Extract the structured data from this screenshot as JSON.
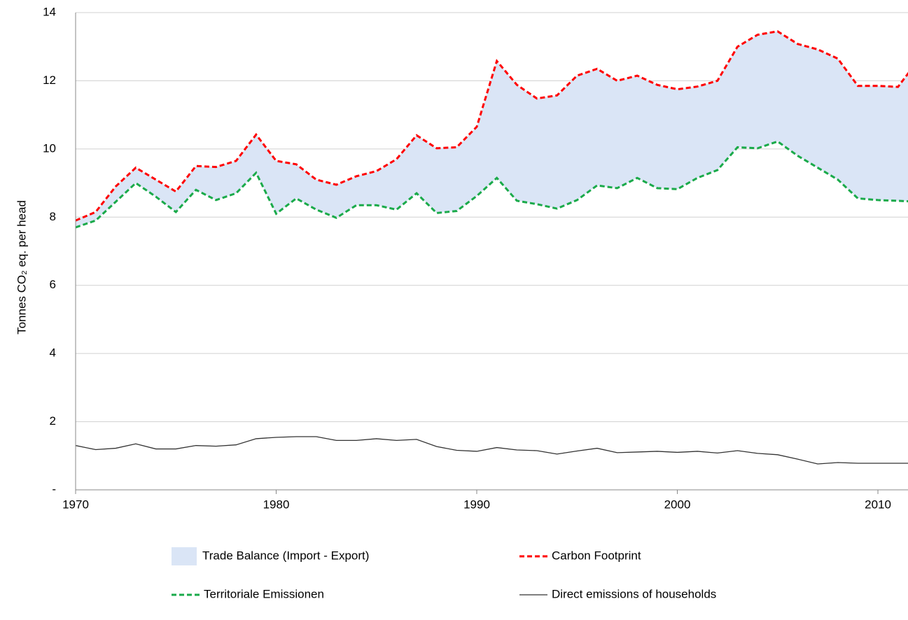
{
  "chart_data": {
    "type": "line",
    "y_label": "Tonnes CO₂ eq. per head",
    "x": [
      1970,
      1971,
      1972,
      1973,
      1974,
      1975,
      1976,
      1977,
      1978,
      1979,
      1980,
      1981,
      1982,
      1983,
      1984,
      1985,
      1986,
      1987,
      1988,
      1989,
      1990,
      1991,
      1992,
      1993,
      1994,
      1995,
      1996,
      1997,
      1998,
      1999,
      2000,
      2001,
      2002,
      2003,
      2004,
      2005,
      2006,
      2007,
      2008,
      2009,
      2010,
      2011,
      2012
    ],
    "xlim": [
      1970,
      2011.5
    ],
    "xticks": [
      1970,
      1980,
      1990,
      2000,
      2010
    ],
    "ylim": [
      0,
      14
    ],
    "yticks": [
      {
        "value": 0,
        "label": "-"
      },
      2,
      4,
      6,
      8,
      10,
      12,
      14
    ],
    "grid": true,
    "series": [
      {
        "name": "Trade Balance (Import - Export)",
        "type": "area",
        "color": "#dae5f6",
        "stacked_on": "Territoriale Emissionen",
        "values": [
          0.2,
          0.25,
          0.45,
          0.45,
          0.5,
          0.6,
          0.7,
          0.97,
          0.95,
          1.12,
          1.55,
          1.0,
          0.88,
          0.97,
          0.85,
          1.0,
          1.48,
          1.7,
          1.9,
          1.87,
          2.03,
          3.43,
          3.4,
          3.1,
          3.32,
          3.65,
          3.42,
          3.15,
          3.0,
          3.03,
          2.93,
          2.68,
          2.62,
          2.95,
          3.33,
          3.23,
          3.28,
          3.47,
          3.55,
          3.3,
          3.35,
          3.34,
          4.15
        ]
      },
      {
        "name": "Carbon Footprint",
        "type": "line",
        "color": "#ff0000",
        "dashed": true,
        "values": [
          7.9,
          8.15,
          8.9,
          9.45,
          9.1,
          8.75,
          9.5,
          9.47,
          9.65,
          10.42,
          9.65,
          9.55,
          9.1,
          8.95,
          9.2,
          9.35,
          9.7,
          10.4,
          10.02,
          10.05,
          10.65,
          12.58,
          11.88,
          11.48,
          11.57,
          12.15,
          12.35,
          12.0,
          12.15,
          11.88,
          11.75,
          11.83,
          12.0,
          13.0,
          13.35,
          13.45,
          13.08,
          12.92,
          12.65,
          11.85,
          11.85,
          11.82,
          12.6
        ]
      },
      {
        "name": "Territoriale Emissionen",
        "type": "line",
        "color": "#1aaa4a",
        "dashed": true,
        "values": [
          7.7,
          7.9,
          8.45,
          9.0,
          8.6,
          8.15,
          8.8,
          8.5,
          8.7,
          9.3,
          8.1,
          8.55,
          8.22,
          7.98,
          8.35,
          8.35,
          8.22,
          8.7,
          8.12,
          8.18,
          8.62,
          9.15,
          8.48,
          8.38,
          8.25,
          8.5,
          8.93,
          8.85,
          9.15,
          8.85,
          8.82,
          9.15,
          9.38,
          10.05,
          10.02,
          10.22,
          9.8,
          9.45,
          9.1,
          8.55,
          8.5,
          8.48,
          8.45
        ]
      },
      {
        "name": "Direct emissions of households",
        "type": "line",
        "color": "#333333",
        "dashed": false,
        "values": [
          1.3,
          1.18,
          1.22,
          1.35,
          1.2,
          1.2,
          1.3,
          1.28,
          1.32,
          1.5,
          1.54,
          1.56,
          1.56,
          1.45,
          1.45,
          1.5,
          1.45,
          1.48,
          1.27,
          1.16,
          1.13,
          1.24,
          1.17,
          1.15,
          1.05,
          1.14,
          1.22,
          1.09,
          1.11,
          1.13,
          1.1,
          1.13,
          1.08,
          1.15,
          1.07,
          1.03,
          0.9,
          0.76,
          0.8,
          0.78,
          0.78,
          0.78,
          0.78
        ]
      }
    ]
  }
}
